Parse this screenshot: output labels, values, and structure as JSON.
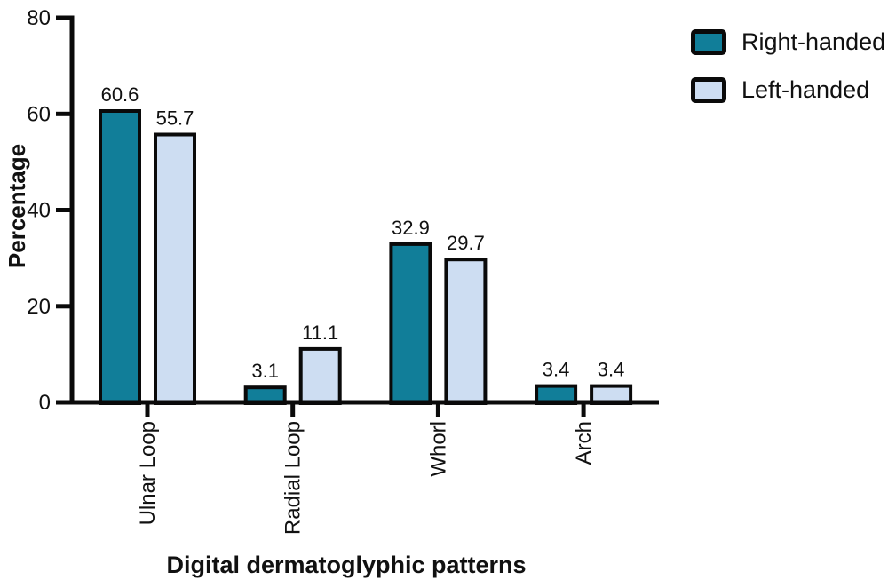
{
  "chart_data": {
    "type": "bar",
    "title": "",
    "xlabel": "Digital dermatoglyphic patterns",
    "ylabel": "Percentage",
    "categories": [
      "Ulnar Loop",
      "Radial Loop",
      "Whorl",
      "Arch"
    ],
    "series": [
      {
        "name": "Right-handed",
        "color": "#117e99",
        "values": [
          60.6,
          3.1,
          32.9,
          3.4
        ]
      },
      {
        "name": "Left-handed",
        "color": "#cdddf2",
        "values": [
          55.7,
          11.1,
          29.7,
          3.4
        ]
      }
    ],
    "value_labels": [
      "60.6",
      "55.7",
      "3.1",
      "11.1",
      "32.9",
      "29.7",
      "3.4",
      "3.4"
    ],
    "ylim": [
      0,
      80
    ],
    "yticks": [
      0,
      20,
      40,
      60,
      80
    ],
    "grid": false,
    "legend_position": "top-right",
    "outline_color": "#0a0a0a",
    "text_color": "#111111",
    "background_color": "#ffffff"
  }
}
